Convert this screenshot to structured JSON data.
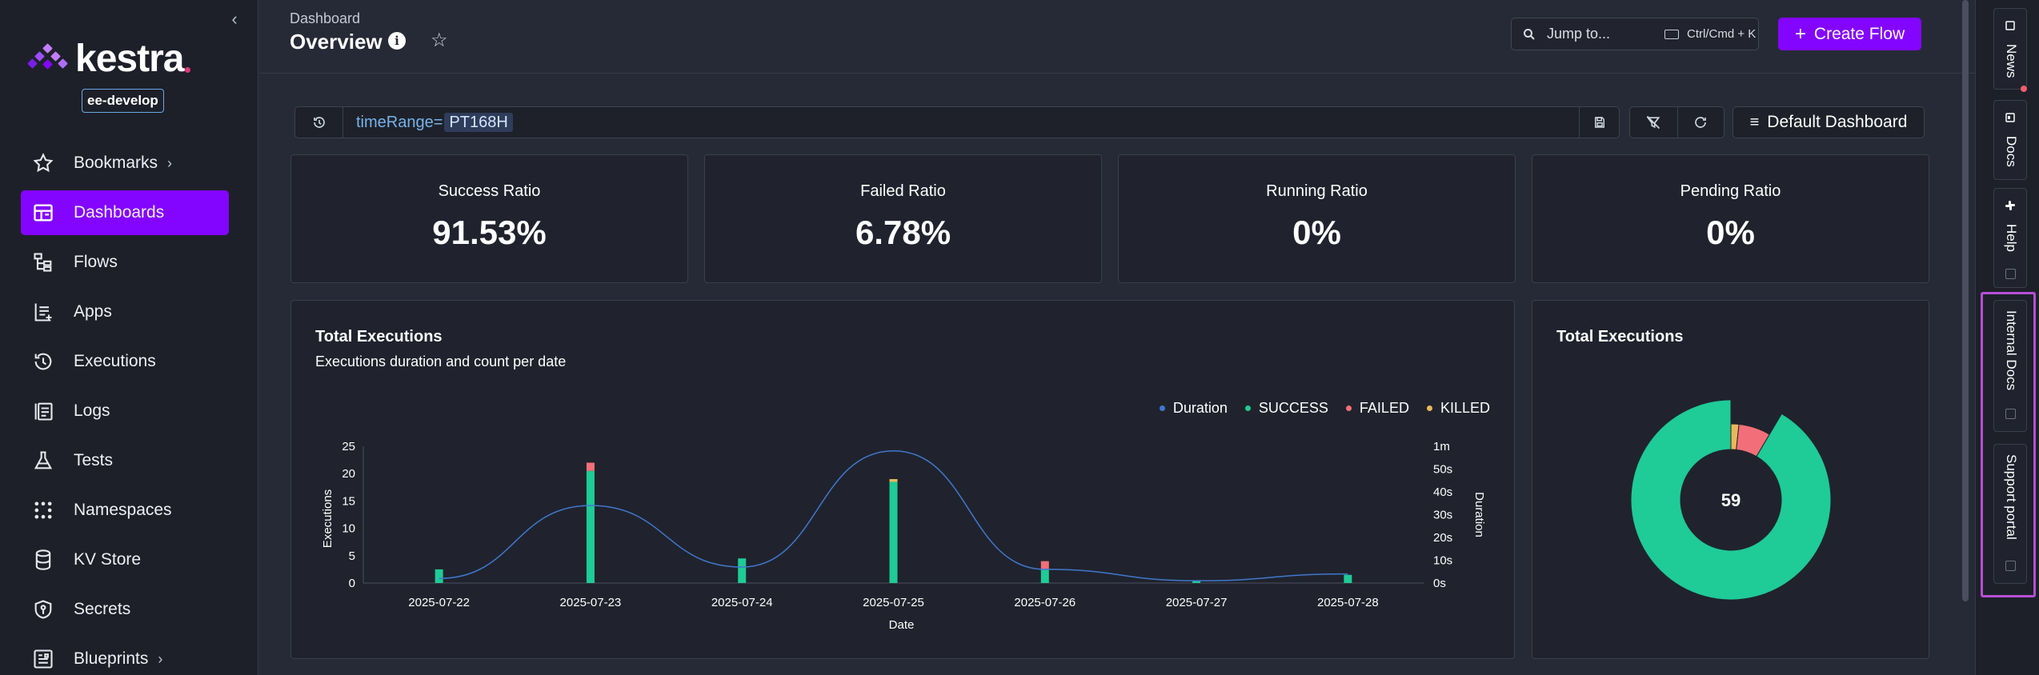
{
  "sidebar": {
    "logo_text": "kestra",
    "env_badge": "ee-develop",
    "items": [
      {
        "label": "Bookmarks",
        "icon": "star-icon",
        "has_chevron": true,
        "active": false
      },
      {
        "label": "Dashboards",
        "icon": "dashboard-icon",
        "has_chevron": false,
        "active": true
      },
      {
        "label": "Flows",
        "icon": "flows-icon",
        "has_chevron": false,
        "active": false
      },
      {
        "label": "Apps",
        "icon": "apps-icon",
        "has_chevron": false,
        "active": false
      },
      {
        "label": "Executions",
        "icon": "history-icon",
        "has_chevron": false,
        "active": false
      },
      {
        "label": "Logs",
        "icon": "logs-icon",
        "has_chevron": false,
        "active": false
      },
      {
        "label": "Tests",
        "icon": "flask-icon",
        "has_chevron": false,
        "active": false
      },
      {
        "label": "Namespaces",
        "icon": "grid-dots-icon",
        "has_chevron": false,
        "active": false
      },
      {
        "label": "KV Store",
        "icon": "database-icon",
        "has_chevron": false,
        "active": false
      },
      {
        "label": "Secrets",
        "icon": "shield-key-icon",
        "has_chevron": false,
        "active": false
      },
      {
        "label": "Blueprints",
        "icon": "blueprint-icon",
        "has_chevron": true,
        "active": false
      }
    ],
    "chevron": "›",
    "collapse_glyph": "‹"
  },
  "header": {
    "breadcrumb": "Dashboard",
    "title": "Overview",
    "info_glyph": "i",
    "star_glyph": "☆",
    "jump_placeholder": "Jump to...",
    "shortcut": "Ctrl/Cmd + K",
    "create_button": "Create Flow",
    "create_plus": "+"
  },
  "filter": {
    "query_key": "timeRange=",
    "query_value": "PT168H",
    "default_dashboard": "Default Dashboard",
    "ham": "≡"
  },
  "kpis": [
    {
      "title": "Success Ratio",
      "value": "91.53%"
    },
    {
      "title": "Failed Ratio",
      "value": "6.78%"
    },
    {
      "title": "Running Ratio",
      "value": "0%"
    },
    {
      "title": "Pending Ratio",
      "value": "0%"
    }
  ],
  "executions_panel": {
    "title": "Total Executions",
    "subtitle": "Executions duration and count per date"
  },
  "donut_panel": {
    "title": "Total Executions",
    "center_value": "59"
  },
  "colors": {
    "success": "#1fcb96",
    "failed": "#f26f79",
    "killed": "#e8b85c",
    "duration": "#3f78cf",
    "accent": "#8405ff"
  },
  "chart_data": [
    {
      "type": "bar",
      "title": "Total Executions",
      "subtitle": "Executions duration and count per date",
      "xlabel": "Date",
      "ylabel": "Executions",
      "y2label": "Duration",
      "categories": [
        "2025-07-22",
        "2025-07-23",
        "2025-07-24",
        "2025-07-25",
        "2025-07-26",
        "2025-07-27",
        "2025-07-28"
      ],
      "ylim": [
        0,
        25
      ],
      "yticks": [
        "0",
        "5",
        "10",
        "15",
        "20",
        "25"
      ],
      "y2ticks": [
        "0s",
        "10s",
        "20s",
        "30s",
        "40s",
        "50s",
        "1m"
      ],
      "legend": [
        "Duration",
        "SUCCESS",
        "FAILED",
        "KILLED"
      ],
      "series": [
        {
          "name": "SUCCESS",
          "values": [
            2.5,
            20.5,
            4.5,
            18.5,
            2.5,
            0.5,
            1.5
          ]
        },
        {
          "name": "FAILED",
          "values": [
            0,
            1.5,
            0,
            0,
            1.5,
            0,
            0
          ]
        },
        {
          "name": "KILLED",
          "values": [
            0,
            0,
            0,
            0.5,
            0,
            0,
            0
          ]
        },
        {
          "name": "Duration",
          "values": [
            2,
            34,
            7,
            58,
            6,
            1,
            4
          ]
        }
      ]
    },
    {
      "type": "pie",
      "title": "Total Executions",
      "center_label": "59",
      "labels": [
        "SUCCESS",
        "FAILED",
        "KILLED"
      ],
      "values": [
        54,
        4,
        1
      ]
    }
  ],
  "right_rail": [
    {
      "label": "News",
      "icon": "news-icon"
    },
    {
      "label": "Docs",
      "icon": "docs-icon"
    },
    {
      "label": "Help",
      "icon": "slack-icon"
    },
    {
      "label": "Internal Docs",
      "icon": "external-link-icon"
    },
    {
      "label": "Support portal",
      "icon": "external-link-icon"
    }
  ]
}
